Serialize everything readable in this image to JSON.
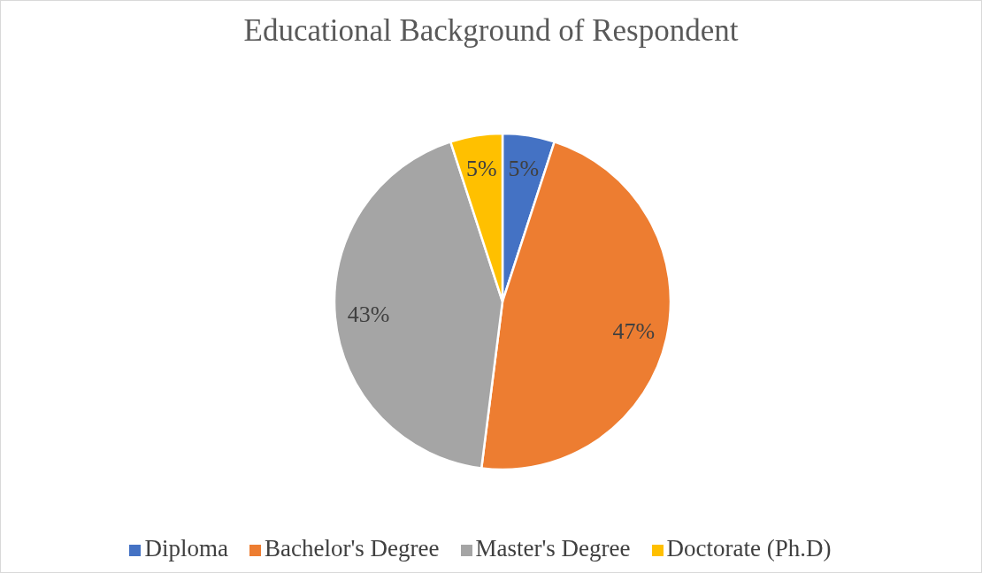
{
  "chart_data": {
    "type": "pie",
    "title": "Educational Background of Respondent",
    "categories": [
      "Diploma",
      "Bachelor's Degree",
      "Master's Degree",
      "Doctorate (Ph.D)"
    ],
    "values": [
      5,
      47,
      43,
      5
    ],
    "colors": [
      "#4472c4",
      "#ed7d31",
      "#a5a5a5",
      "#ffc000"
    ],
    "value_labels": [
      "5%",
      "47%",
      "43%",
      "5%"
    ],
    "legend": "bottom"
  }
}
